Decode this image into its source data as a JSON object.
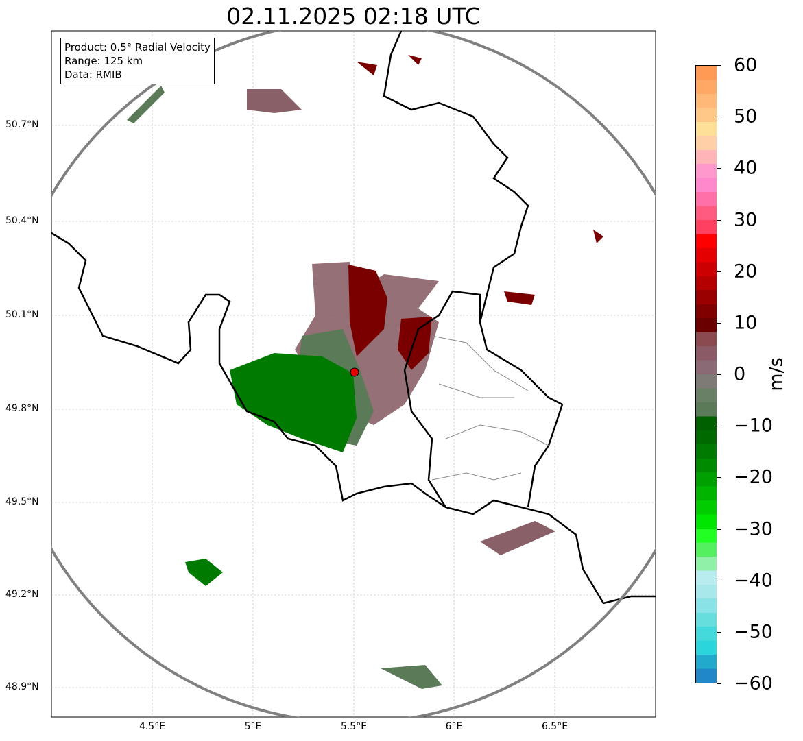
{
  "title": "02.11.2025 02:18 UTC",
  "info": {
    "product": "Product: 0.5° Radial Velocity",
    "range": "Range: 125 km",
    "data": "Data: RMIB"
  },
  "lat_labels": [
    "50.7°N",
    "50.4°N",
    "50.1°N",
    "49.8°N",
    "49.5°N",
    "49.2°N",
    "48.9°N"
  ],
  "lon_labels": [
    "4.5°E",
    "5°E",
    "5.5°E",
    "6°E",
    "6.5°E"
  ],
  "colorbar": {
    "unit": "m/s",
    "min": -60,
    "max": 60,
    "ticks": [
      "60",
      "50",
      "40",
      "30",
      "20",
      "10",
      "0",
      "−10",
      "−20",
      "−30",
      "−40",
      "−50",
      "−60"
    ],
    "colors_top_to_bottom": [
      "#ff9a55",
      "#ffa866",
      "#ffb877",
      "#ffc888",
      "#ffe099",
      "#ffd0a8",
      "#ffb4b8",
      "#ff98cc",
      "#ff88cc",
      "#ff70a8",
      "#ff5a80",
      "#ff4060",
      "#ff0000",
      "#e40000",
      "#cc0000",
      "#b40000",
      "#9a0000",
      "#800000",
      "#6a0000",
      "#8a4a50",
      "#8a5a66",
      "#8a6a74",
      "#7e7a76",
      "#6a8066",
      "#5a7a58",
      "#006000",
      "#006a00",
      "#007a00",
      "#008a00",
      "#00a000",
      "#00b400",
      "#00cc00",
      "#00e600",
      "#22ff22",
      "#55f060",
      "#90f0a8",
      "#b8ecee",
      "#a8e8ea",
      "#88e2e6",
      "#66dede",
      "#44dadc",
      "#2ad6dc",
      "#22aacc",
      "#2088c8"
    ]
  },
  "colors": {
    "outbound": "#7a0000",
    "inbound": "#007a00",
    "near_zero_pos": "#8a6068",
    "near_zero_neg": "#5a7a58",
    "radar_site": "#e00000",
    "range_ring": "#808080"
  }
}
